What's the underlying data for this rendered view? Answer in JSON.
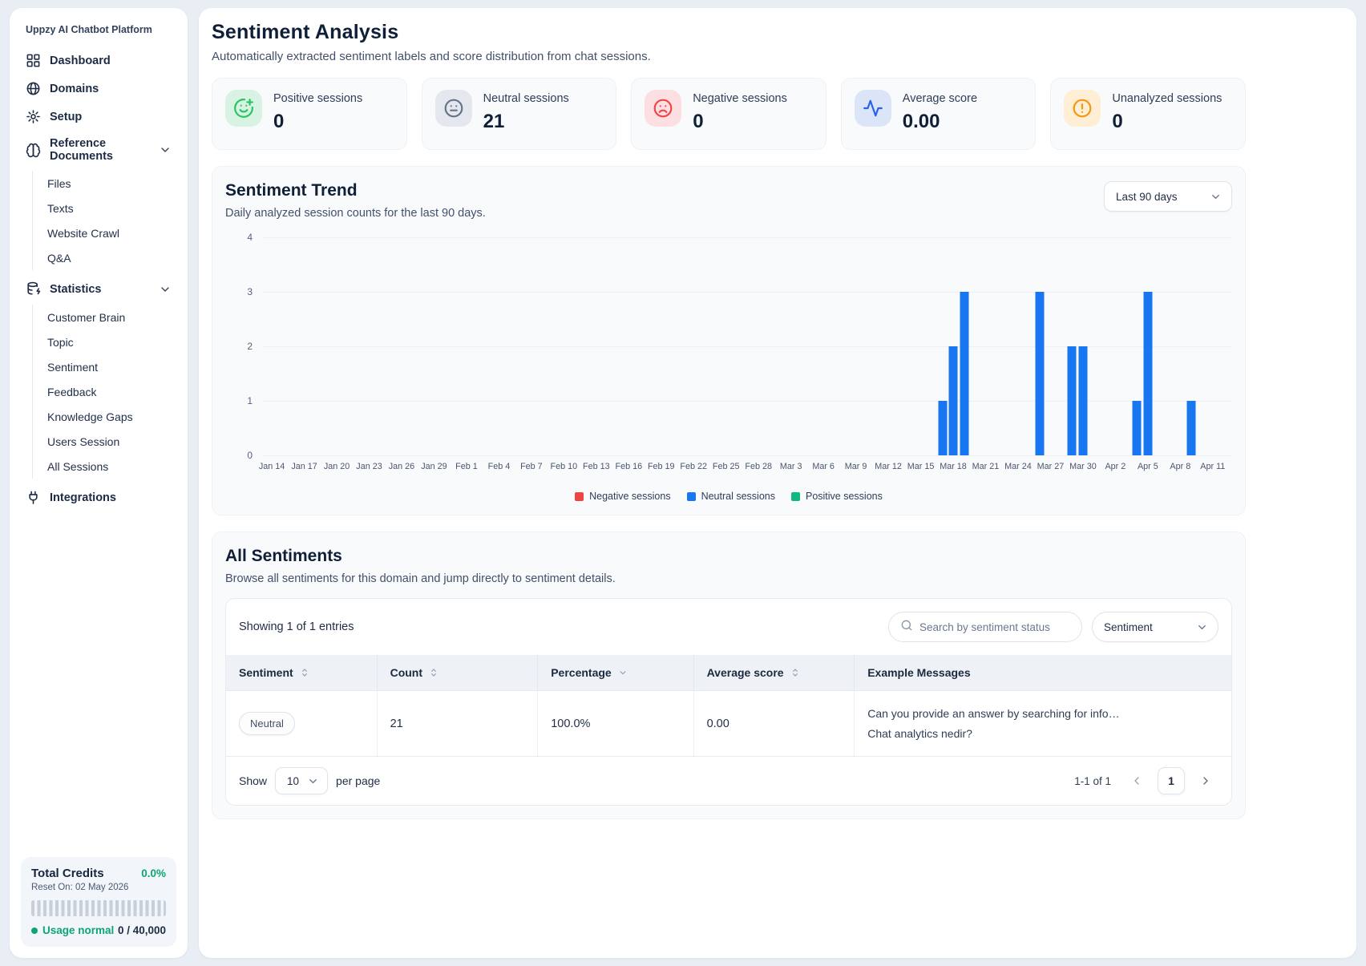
{
  "app": {
    "title": "Uppzy AI Chatbot Platform"
  },
  "sidebar": {
    "items": [
      {
        "label": "Dashboard",
        "icon": "dashboard-icon"
      },
      {
        "label": "Domains",
        "icon": "globe-icon"
      },
      {
        "label": "Setup",
        "icon": "gear-icon"
      },
      {
        "label": "Reference Documents",
        "icon": "brain-icon",
        "expanded": true,
        "children": [
          "Files",
          "Texts",
          "Website Crawl",
          "Q&A"
        ]
      },
      {
        "label": "Statistics",
        "icon": "database-zap-icon",
        "expanded": true,
        "children": [
          "Customer Brain",
          "Topic",
          "Sentiment",
          "Feedback",
          "Knowledge Gaps",
          "Users Session",
          "All Sessions"
        ]
      },
      {
        "label": "Integrations",
        "icon": "plug-icon"
      }
    ],
    "credits": {
      "title": "Total Credits",
      "percent": "0.0%",
      "reset": "Reset On: 02 May 2026",
      "status": "Usage normal",
      "usage": "0 / 40,000"
    }
  },
  "header": {
    "title": "Sentiment Analysis",
    "subtitle": "Automatically extracted sentiment labels and score distribution from chat sessions."
  },
  "stat_cards": [
    {
      "label": "Positive sessions",
      "value": "0",
      "icon": "smile-plus-icon",
      "fg": "#22c55e",
      "bg": "#d8f3e4"
    },
    {
      "label": "Neutral sessions",
      "value": "21",
      "icon": "meh-face-icon",
      "fg": "#64748b",
      "bg": "#e4e7ed"
    },
    {
      "label": "Negative sessions",
      "value": "0",
      "icon": "frown-face-icon",
      "fg": "#ef4444",
      "bg": "#fcdfe3"
    },
    {
      "label": "Average score",
      "value": "0.00",
      "icon": "activity-pulse-icon",
      "fg": "#2563eb",
      "bg": "#dce5f8"
    },
    {
      "label": "Unanalyzed sessions",
      "value": "0",
      "icon": "alert-circle-icon",
      "fg": "#f59511",
      "bg": "#fdeed4"
    }
  ],
  "chart_data": {
    "type": "bar",
    "title": "Sentiment Trend",
    "subtitle": "Daily analyzed session counts for the last 90 days.",
    "range_selector": "Last 90 days",
    "xlabel": "",
    "ylabel": "",
    "ylim": [
      0,
      4
    ],
    "yticks": [
      0,
      1,
      2,
      3,
      4
    ],
    "grid": true,
    "legend_position": "bottom",
    "x_tick_labels": [
      "Jan 14",
      "Jan 17",
      "Jan 20",
      "Jan 23",
      "Jan 26",
      "Jan 29",
      "Feb 1",
      "Feb 4",
      "Feb 7",
      "Feb 10",
      "Feb 13",
      "Feb 16",
      "Feb 19",
      "Feb 22",
      "Feb 25",
      "Feb 28",
      "Mar 3",
      "Mar 6",
      "Mar 9",
      "Mar 12",
      "Mar 15",
      "Mar 18",
      "Mar 21",
      "Mar 24",
      "Mar 27",
      "Mar 30",
      "Apr 2",
      "Apr 5",
      "Apr 8",
      "Apr 11"
    ],
    "days_span": 87,
    "legend": [
      {
        "label": "Negative sessions",
        "color": "#ef4444"
      },
      {
        "label": "Neutral sessions",
        "color": "#1877f0"
      },
      {
        "label": "Positive sessions",
        "color": "#10b981"
      }
    ],
    "series": [
      {
        "name": "Negative sessions",
        "color": "#ef4444",
        "points": []
      },
      {
        "name": "Neutral sessions",
        "color": "#1877f0",
        "points": [
          {
            "date": "Mar 17",
            "day_index": 62,
            "count": 1
          },
          {
            "date": "Mar 18",
            "day_index": 63,
            "count": 2
          },
          {
            "date": "Mar 19",
            "day_index": 64,
            "count": 3
          },
          {
            "date": "Mar 26",
            "day_index": 71,
            "count": 3
          },
          {
            "date": "Mar 29",
            "day_index": 74,
            "count": 2
          },
          {
            "date": "Mar 30",
            "day_index": 75,
            "count": 2
          },
          {
            "date": "Apr 4",
            "day_index": 80,
            "count": 1
          },
          {
            "date": "Apr 5",
            "day_index": 81,
            "count": 3
          },
          {
            "date": "Apr 9",
            "day_index": 85,
            "count": 1
          }
        ]
      },
      {
        "name": "Positive sessions",
        "color": "#10b981",
        "points": []
      }
    ]
  },
  "sentiments_section": {
    "title": "All Sentiments",
    "subtitle": "Browse all sentiments for this domain and jump directly to sentiment details.",
    "showing": "Showing 1 of 1 entries",
    "search_placeholder": "Search by sentiment status",
    "filter_value": "Sentiment",
    "table": {
      "columns": [
        {
          "label": "Sentiment",
          "sort": "both"
        },
        {
          "label": "Count",
          "sort": "both"
        },
        {
          "label": "Percentage",
          "sort": "down"
        },
        {
          "label": "Average score",
          "sort": "both"
        },
        {
          "label": "Example Messages",
          "sort": "none"
        }
      ],
      "rows": [
        {
          "sentiment": "Neutral",
          "count": "21",
          "percentage": "100.0%",
          "avg_score": "0.00",
          "examples": [
            "Can you provide an answer by searching for info…",
            "Chat analytics nedir?"
          ]
        }
      ]
    },
    "pagination": {
      "show_label": "Show",
      "per_page": "10",
      "per_page_suffix": "per page",
      "range": "1-1 of 1",
      "page": "1"
    }
  }
}
